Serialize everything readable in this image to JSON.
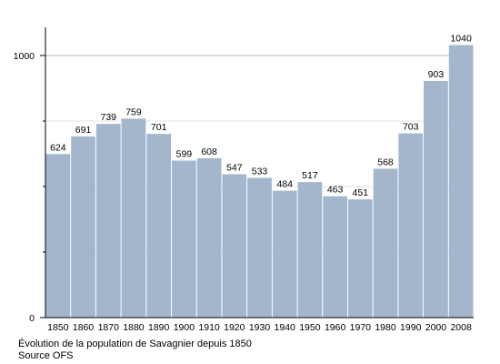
{
  "chart_data": {
    "type": "bar",
    "categories": [
      "1850",
      "1860",
      "1870",
      "1880",
      "1890",
      "1900",
      "1910",
      "1920",
      "1930",
      "1940",
      "1950",
      "1960",
      "1970",
      "1980",
      "1990",
      "2000",
      "2008"
    ],
    "values": [
      624,
      691,
      739,
      759,
      701,
      599,
      608,
      547,
      533,
      484,
      517,
      463,
      451,
      568,
      703,
      903,
      1040
    ],
    "y_ticks": [
      "0",
      "1000"
    ],
    "ylim": [
      0,
      1100
    ],
    "grid": true,
    "bar_color": "#a3b6cc",
    "caption": "Évolution de la population de Savagnier depuis 1850",
    "source": "Source OFS"
  }
}
